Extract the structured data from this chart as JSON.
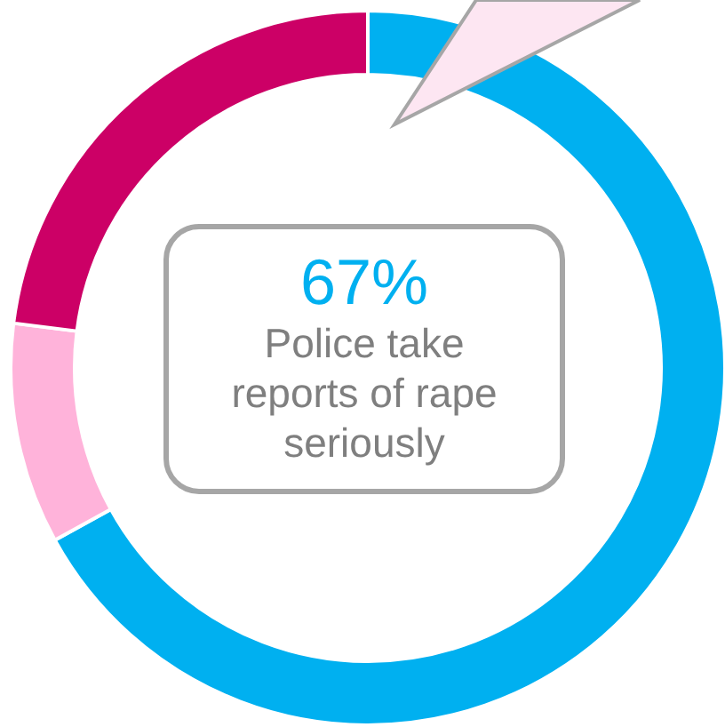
{
  "chart_data": {
    "type": "donut",
    "categories": [
      null,
      null,
      null
    ],
    "values": [
      67,
      10,
      23
    ],
    "colors": [
      "#00b0f0",
      "#ffb3da",
      "#cc0066"
    ],
    "annotations": [
      "67%",
      "Police take reports of rape seriously"
    ]
  }
}
